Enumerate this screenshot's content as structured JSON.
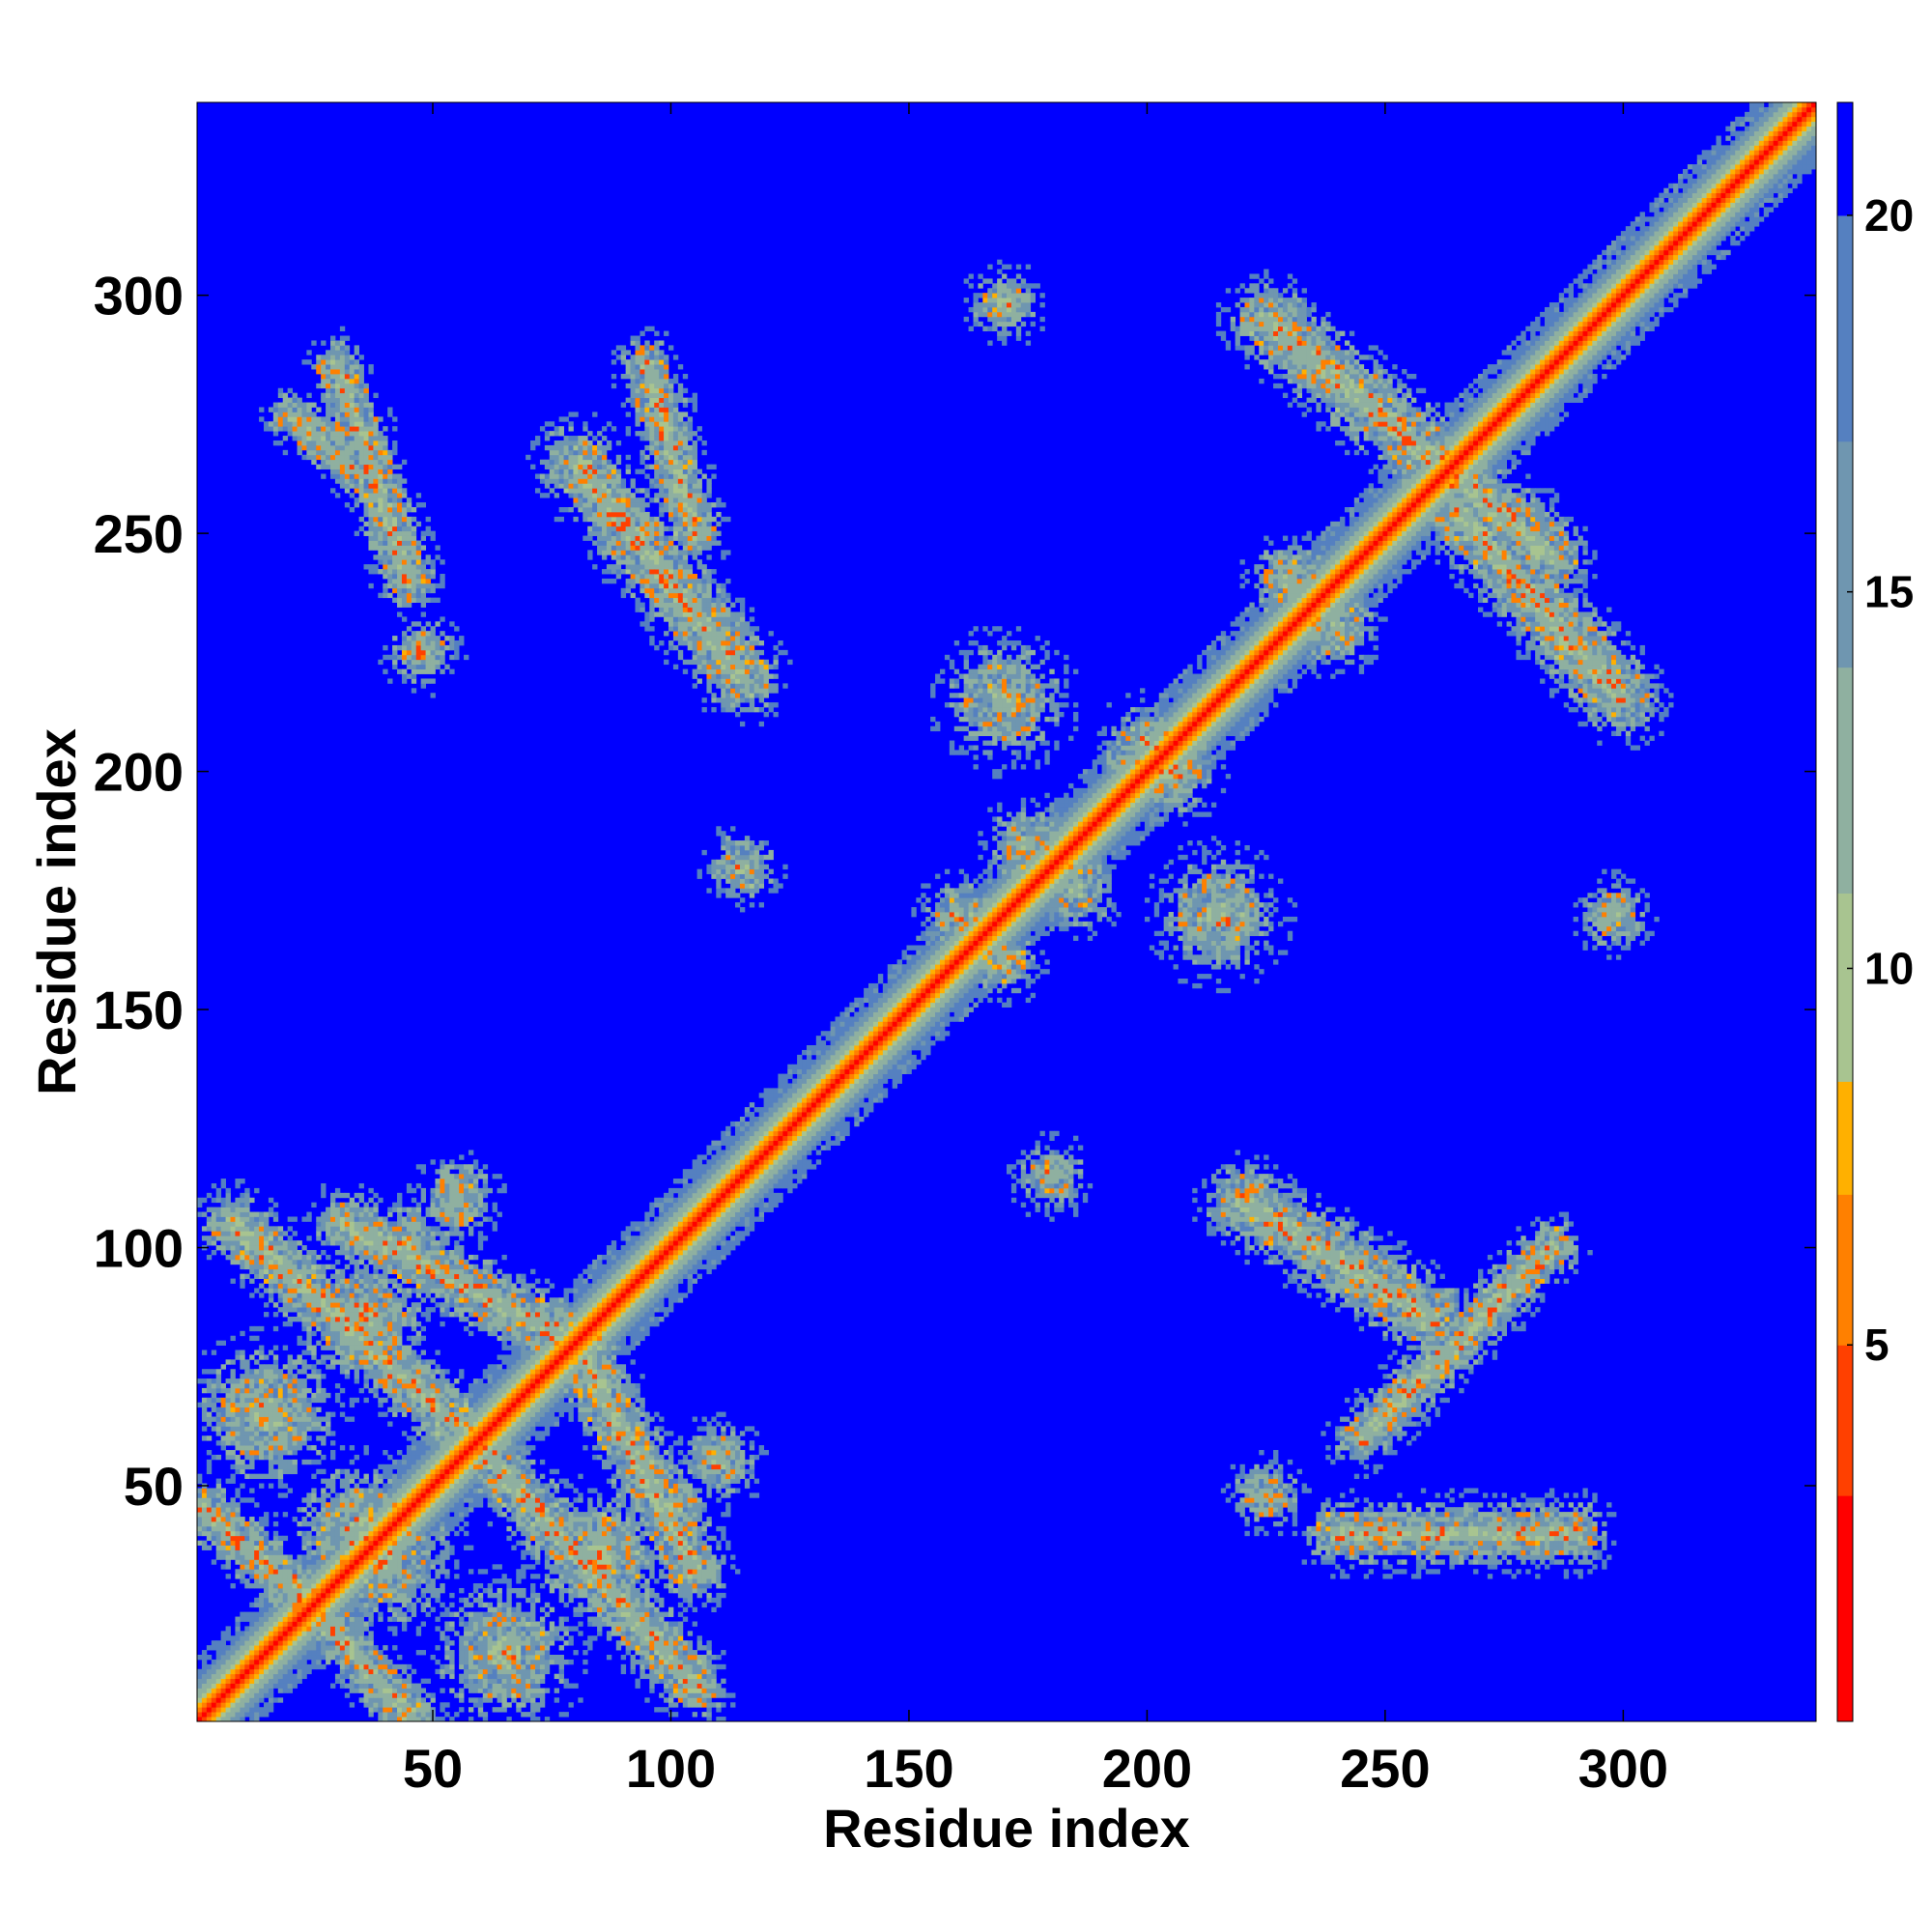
{
  "chart_data": {
    "type": "heatmap",
    "title": "",
    "xlabel": "Residue index",
    "ylabel": "Residue index",
    "xlim": [
      0.5,
      340.5
    ],
    "ylim": [
      0.5,
      340.5
    ],
    "x_ticks": [
      50,
      100,
      150,
      200,
      250,
      300
    ],
    "y_ticks": [
      50,
      100,
      150,
      200,
      250,
      300
    ],
    "colorbar": {
      "range": [
        0,
        21.5
      ],
      "ticks": [
        5,
        10,
        15,
        20
      ],
      "colors": [
        "#ff0000",
        "#ff4000",
        "#ff8000",
        "#ffb000",
        "#a8c490",
        "#8fb0a0",
        "#6f96b0",
        "#5580c0",
        "#0000ff"
      ],
      "boundaries": [
        0,
        3,
        5,
        7,
        8.5,
        11,
        14,
        17,
        20,
        21.5
      ]
    },
    "diagonal_band": [
      {
        "offset": 0,
        "value": 1.5
      },
      {
        "offset": 1,
        "value": 3.8
      },
      {
        "offset": 2,
        "value": 5.8
      },
      {
        "offset": 3,
        "value": 7.5
      },
      {
        "offset": 4,
        "value": 9.5
      },
      {
        "offset": 5,
        "value": 11.5
      },
      {
        "offset": 6,
        "value": 13.0
      },
      {
        "offset": 7,
        "value": 14.5
      },
      {
        "offset": 8,
        "value": 16.5
      },
      {
        "offset": 9,
        "value": 18.5
      }
    ],
    "contact_regions": [
      {
        "shape": "blob",
        "x": 35,
        "y": 40,
        "r": 14
      },
      {
        "shape": "blob",
        "x": 40,
        "y": 35,
        "r": 14
      },
      {
        "shape": "blob",
        "x": 15,
        "y": 65,
        "r": 14
      },
      {
        "shape": "blob",
        "x": 65,
        "y": 15,
        "r": 14
      },
      {
        "shape": "blob",
        "x": 35,
        "y": 85,
        "r": 13
      },
      {
        "shape": "blob",
        "x": 85,
        "y": 35,
        "r": 13
      },
      {
        "shape": "stripe",
        "x1": 8,
        "y1": 105,
        "x2": 58,
        "y2": 60,
        "w": 7
      },
      {
        "shape": "stripe",
        "x1": 105,
        "y1": 8,
        "x2": 60,
        "y2": 58,
        "w": 7
      },
      {
        "shape": "stripe",
        "x1": 32,
        "y1": 105,
        "x2": 80,
        "y2": 80,
        "w": 7
      },
      {
        "shape": "stripe",
        "x1": 105,
        "y1": 32,
        "x2": 80,
        "y2": 80,
        "w": 7
      },
      {
        "shape": "stripe",
        "x1": 2,
        "y1": 45,
        "x2": 30,
        "y2": 20,
        "w": 6
      },
      {
        "shape": "stripe",
        "x1": 45,
        "y1": 2,
        "x2": 20,
        "y2": 30,
        "w": 6
      },
      {
        "shape": "blob",
        "x": 55,
        "y": 110,
        "r": 8
      },
      {
        "shape": "blob",
        "x": 110,
        "y": 55,
        "r": 8
      },
      {
        "shape": "blob",
        "x": 100,
        "y": 45,
        "r": 9
      },
      {
        "shape": "blob",
        "x": 45,
        "y": 100,
        "r": 9
      },
      {
        "shape": "stripe",
        "x1": 30,
        "y1": 285,
        "x2": 45,
        "y2": 240,
        "w": 6
      },
      {
        "shape": "stripe",
        "x1": 20,
        "y1": 275,
        "x2": 35,
        "y2": 262,
        "w": 5
      },
      {
        "shape": "blob",
        "x": 48,
        "y": 225,
        "r": 7
      },
      {
        "shape": "stripe",
        "x1": 80,
        "y1": 265,
        "x2": 115,
        "y2": 220,
        "w": 8
      },
      {
        "shape": "stripe",
        "x1": 95,
        "y1": 285,
        "x2": 105,
        "y2": 250,
        "w": 6
      },
      {
        "shape": "blob",
        "x": 115,
        "y": 180,
        "r": 7
      },
      {
        "shape": "blob",
        "x": 170,
        "y": 298,
        "r": 7
      },
      {
        "shape": "blob",
        "x": 180,
        "y": 115,
        "r": 7
      },
      {
        "shape": "stripe",
        "x1": 225,
        "y1": 295,
        "x2": 285,
        "y2": 245,
        "w": 8
      },
      {
        "shape": "stripe",
        "x1": 265,
        "y1": 255,
        "x2": 300,
        "y2": 215,
        "w": 8
      },
      {
        "shape": "stripe",
        "x1": 220,
        "y1": 110,
        "x2": 260,
        "y2": 85,
        "w": 8
      },
      {
        "shape": "stripe",
        "x1": 245,
        "y1": 60,
        "x2": 285,
        "y2": 100,
        "w": 6
      },
      {
        "shape": "blob",
        "x": 225,
        "y": 48,
        "r": 7
      },
      {
        "shape": "stripe",
        "x1": 240,
        "y1": 40,
        "x2": 290,
        "y2": 40,
        "w": 7
      },
      {
        "shape": "blob",
        "x": 298,
        "y": 170,
        "r": 7
      },
      {
        "shape": "blob",
        "x": 170,
        "y": 215,
        "r": 12
      },
      {
        "shape": "blob",
        "x": 215,
        "y": 170,
        "r": 12
      },
      {
        "shape": "blob",
        "x": 200,
        "y": 205,
        "r": 9
      },
      {
        "shape": "blob",
        "x": 205,
        "y": 200,
        "r": 9
      },
      {
        "shape": "blob",
        "x": 185,
        "y": 175,
        "r": 8
      },
      {
        "shape": "blob",
        "x": 175,
        "y": 185,
        "r": 8
      },
      {
        "shape": "blob",
        "x": 160,
        "y": 170,
        "r": 7
      },
      {
        "shape": "blob",
        "x": 170,
        "y": 160,
        "r": 7
      },
      {
        "shape": "blob",
        "x": 240,
        "y": 230,
        "r": 8
      },
      {
        "shape": "blob",
        "x": 230,
        "y": 240,
        "r": 8
      }
    ]
  }
}
